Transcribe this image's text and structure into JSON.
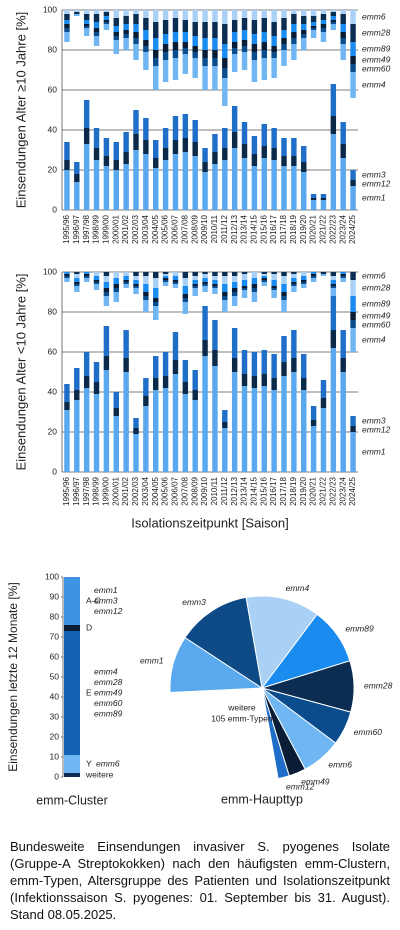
{
  "chart_data": [
    {
      "type": "stacked_bar",
      "y_label": "Einsendungen Alter ≥10 Jahre [%]",
      "categories": [
        "1995/96",
        "1996/97",
        "1997/98",
        "1998/99",
        "1999/00",
        "2000/01",
        "2001/02",
        "2002/03",
        "2003/04",
        "2004/05",
        "2005/06",
        "2006/07",
        "2007/08",
        "2008/09",
        "2009/10",
        "2010/11",
        "2011/12",
        "2012/13",
        "2013/14",
        "2014/15",
        "2015/16",
        "2016/17",
        "2017/18",
        "2018/19",
        "2019/20",
        "2020/21",
        "2021/22",
        "2022/23",
        "2023/24",
        "2024/25"
      ],
      "ylim": [
        0,
        100
      ],
      "yticks": [
        0,
        20,
        40,
        60,
        80,
        100
      ],
      "grid": true,
      "series": [
        {
          "name": "emm1",
          "anchor": "bottom",
          "color": "#5aa8ee",
          "values": [
            20,
            14,
            33,
            25,
            22,
            20,
            23,
            30,
            28,
            21,
            25,
            28,
            29,
            27,
            19,
            23,
            25,
            31,
            26,
            22,
            26,
            25,
            22,
            22,
            19,
            5,
            5,
            38,
            26,
            12
          ]
        },
        {
          "name": "emm12",
          "anchor": "bottom",
          "color": "#0b2a4a",
          "values": [
            5,
            4,
            8,
            6,
            5,
            5,
            6,
            8,
            7,
            5,
            6,
            7,
            7,
            7,
            5,
            6,
            6,
            8,
            7,
            6,
            6,
            6,
            5,
            5,
            5,
            1,
            1,
            9,
            7,
            3
          ]
        },
        {
          "name": "emm3",
          "anchor": "bottom",
          "color": "#1f6fc9",
          "values": [
            9,
            6,
            14,
            10,
            9,
            9,
            10,
            12,
            11,
            9,
            10,
            12,
            12,
            11,
            7,
            9,
            10,
            13,
            11,
            9,
            11,
            10,
            9,
            9,
            8,
            2,
            2,
            16,
            11,
            5
          ]
        },
        {
          "name": "emm6",
          "anchor": "top",
          "color": "#a8d1f5",
          "values": [
            2,
            1,
            2,
            2,
            1,
            4,
            3,
            2,
            4,
            6,
            5,
            4,
            5,
            6,
            6,
            6,
            7,
            5,
            4,
            5,
            4,
            6,
            4,
            2,
            3,
            3,
            2,
            1,
            2,
            7
          ]
        },
        {
          "name": "emm28",
          "anchor": "top",
          "color": "#0c2d52",
          "values": [
            3,
            1,
            3,
            4,
            2,
            4,
            4,
            5,
            6,
            8,
            7,
            7,
            6,
            7,
            8,
            8,
            10,
            6,
            6,
            7,
            7,
            7,
            6,
            5,
            4,
            3,
            3,
            2,
            5,
            9
          ]
        },
        {
          "name": "emm89",
          "anchor": "top",
          "color": "#1a8cf0",
          "values": [
            2,
            0,
            2,
            3,
            2,
            3,
            3,
            4,
            5,
            6,
            5,
            5,
            5,
            5,
            6,
            6,
            7,
            5,
            5,
            5,
            5,
            5,
            4,
            4,
            3,
            2,
            2,
            2,
            4,
            7
          ]
        },
        {
          "name": "emm49",
          "anchor": "top",
          "color": "#0a1d36",
          "values": [
            2,
            0,
            1,
            2,
            1,
            2,
            2,
            3,
            3,
            4,
            4,
            4,
            3,
            3,
            4,
            4,
            5,
            3,
            3,
            4,
            4,
            3,
            3,
            3,
            2,
            1,
            2,
            1,
            3,
            4
          ]
        },
        {
          "name": "emm60",
          "anchor": "top",
          "color": "#0a4c8c",
          "values": [
            2,
            0,
            1,
            2,
            1,
            2,
            2,
            3,
            3,
            4,
            4,
            4,
            3,
            3,
            4,
            4,
            5,
            3,
            3,
            4,
            4,
            3,
            3,
            3,
            2,
            1,
            2,
            1,
            3,
            4
          ]
        },
        {
          "name": "emm4",
          "anchor": "top",
          "color": "#6fb6f2",
          "values": [
            5,
            1,
            4,
            5,
            3,
            7,
            6,
            8,
            9,
            12,
            11,
            11,
            10,
            10,
            12,
            12,
            14,
            9,
            9,
            11,
            11,
            10,
            8,
            8,
            6,
            4,
            5,
            3,
            8,
            13
          ]
        }
      ]
    },
    {
      "type": "stacked_bar",
      "y_label": "Einsendungen Alter <10 Jahre [%]",
      "x_label": "Isolationszeitpunkt [Saison]",
      "categories": [
        "1995/96",
        "1996/97",
        "1997/98",
        "1998/99",
        "1999/00",
        "2000/01",
        "2001/02",
        "2002/03",
        "2003/04",
        "2004/05",
        "2005/06",
        "2006/07",
        "2007/08",
        "2008/09",
        "2009/10",
        "2010/11",
        "2011/12",
        "2012/13",
        "2013/14",
        "2014/15",
        "2015/16",
        "2016/17",
        "2017/18",
        "2018/19",
        "2019/20",
        "2020/21",
        "2021/22",
        "2022/23",
        "2023/24",
        "2024/25"
      ],
      "ylim": [
        0,
        100
      ],
      "yticks": [
        0,
        20,
        40,
        60,
        80,
        100
      ],
      "grid": true,
      "series": [
        {
          "name": "emm1",
          "anchor": "bottom",
          "color": "#5aa8ee",
          "values": [
            31,
            36,
            42,
            39,
            51,
            28,
            50,
            19,
            33,
            41,
            42,
            49,
            39,
            36,
            58,
            53,
            22,
            50,
            43,
            42,
            43,
            41,
            48,
            50,
            41,
            23,
            32,
            62,
            50,
            20
          ]
        },
        {
          "name": "emm12",
          "anchor": "bottom",
          "color": "#0b2a4a",
          "values": [
            4,
            5,
            6,
            6,
            7,
            4,
            7,
            3,
            5,
            6,
            6,
            7,
            6,
            5,
            8,
            8,
            3,
            7,
            6,
            6,
            6,
            6,
            7,
            7,
            6,
            3,
            5,
            9,
            7,
            3
          ]
        },
        {
          "name": "emm3",
          "anchor": "bottom",
          "color": "#1f6fc9",
          "values": [
            9,
            11,
            12,
            10,
            15,
            8,
            14,
            5,
            9,
            11,
            12,
            14,
            11,
            10,
            17,
            15,
            6,
            15,
            12,
            12,
            12,
            12,
            13,
            14,
            12,
            7,
            9,
            18,
            14,
            5
          ]
        },
        {
          "name": "emm6",
          "anchor": "top",
          "color": "#0c2d52",
          "values": [
            0,
            1,
            0,
            0,
            2,
            0,
            0,
            2,
            2,
            3,
            1,
            0,
            3,
            2,
            1,
            2,
            2,
            2,
            1,
            0,
            1,
            1,
            2,
            1,
            0,
            0,
            1,
            2,
            0,
            4
          ]
        },
        {
          "name": "emm28",
          "anchor": "top",
          "color": "#a8d1f5",
          "values": [
            0,
            2,
            0,
            2,
            3,
            3,
            2,
            2,
            4,
            5,
            1,
            2,
            4,
            2,
            2,
            2,
            4,
            3,
            3,
            3,
            1,
            3,
            4,
            2,
            2,
            0,
            0,
            2,
            0,
            8
          ]
        },
        {
          "name": "emm89",
          "anchor": "top",
          "color": "#1a8cf0",
          "values": [
            1,
            2,
            1,
            2,
            3,
            3,
            2,
            2,
            4,
            5,
            1,
            2,
            4,
            2,
            2,
            2,
            4,
            3,
            3,
            3,
            1,
            3,
            4,
            2,
            2,
            1,
            0,
            2,
            1,
            8
          ]
        },
        {
          "name": "emm49",
          "anchor": "top",
          "color": "#0a1d36",
          "values": [
            1,
            1,
            1,
            1,
            2,
            2,
            1,
            1,
            2,
            2,
            1,
            1,
            2,
            1,
            1,
            1,
            2,
            2,
            1,
            2,
            1,
            1,
            2,
            1,
            1,
            1,
            0,
            1,
            1,
            4
          ]
        },
        {
          "name": "emm60",
          "anchor": "top",
          "color": "#0a4c8c",
          "values": [
            1,
            1,
            1,
            1,
            2,
            2,
            1,
            1,
            2,
            2,
            1,
            1,
            2,
            1,
            1,
            1,
            2,
            2,
            1,
            2,
            1,
            1,
            2,
            1,
            1,
            1,
            0,
            1,
            1,
            4
          ]
        },
        {
          "name": "emm4",
          "anchor": "top",
          "color": "#6fb6f2",
          "values": [
            2,
            3,
            2,
            3,
            5,
            5,
            2,
            3,
            6,
            7,
            2,
            2,
            6,
            4,
            3,
            3,
            6,
            5,
            4,
            5,
            2,
            4,
            6,
            3,
            2,
            2,
            1,
            4,
            2,
            12
          ]
        }
      ]
    },
    {
      "type": "cluster_bar",
      "y_label": "Einsendungen letzte 12 Monate [%]",
      "x_label": "emm-Cluster",
      "ylim": [
        0,
        100
      ],
      "yticks": [
        0,
        10,
        20,
        30,
        40,
        50,
        60,
        70,
        80,
        90,
        100
      ],
      "series": [
        {
          "name": "weitere",
          "color": "#0c2d52",
          "values": [
            2
          ],
          "members": []
        },
        {
          "name": "Y",
          "color": "#6fb6f2",
          "values": [
            9
          ],
          "members": [
            "emm6"
          ]
        },
        {
          "name": "E",
          "color": "#1461b3",
          "values": [
            62
          ],
          "members": [
            "emm4",
            "emm28",
            "emm49",
            "emm60",
            "emm89"
          ]
        },
        {
          "name": "D",
          "color": "#0a1d36",
          "values": [
            3
          ],
          "members": []
        },
        {
          "name": "A-C",
          "color": "#3f93e3",
          "values": [
            24
          ],
          "members": [
            "emm1",
            "emm3",
            "emm12"
          ]
        }
      ]
    },
    {
      "type": "pie",
      "title": "emm-Haupttyp",
      "categories": [
        "emm4",
        "emm89",
        "emm28",
        "emm60",
        "emm6",
        "emm49",
        "emm12",
        "weitere",
        "emm1",
        "emm3"
      ],
      "values": [
        13,
        10,
        9,
        6,
        7,
        3,
        2,
        27,
        10,
        13
      ],
      "colors": [
        "#a8d1f5",
        "#1a8cf0",
        "#0c2d52",
        "#0a4c8c",
        "#6fb6f2",
        "#0a1d36",
        "#1f6fc9",
        "#ffffff",
        "#5aa8ee",
        "#0e4a86"
      ],
      "annotation": "105 emm-Typen"
    }
  ],
  "caption": "Bundesweite Einsendungen invasiver S. pyogenes Isolate (Gruppe-A Streptokokken) nach den häufigsten emm-Clustern, emm-Typen, Altersgruppe des Patienten und Isolationszeitpunkt (Infektionssaison S. pyogenes: 01. September bis 31. August). Stand 08.05.2025."
}
